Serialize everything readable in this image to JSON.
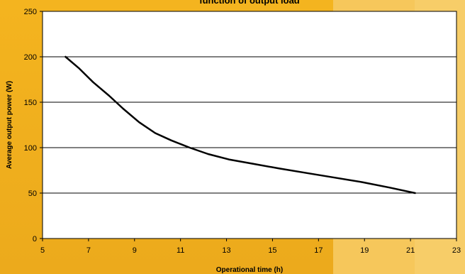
{
  "chart_data": {
    "type": "line",
    "title": "function of output load",
    "xlabel": "Operational time (h)",
    "ylabel": "Average output power (W)",
    "xlim": [
      5,
      23
    ],
    "ylim": [
      0,
      250
    ],
    "xticks": [
      "5",
      "7",
      "9",
      "11",
      "13",
      "15",
      "17",
      "19",
      "21",
      "23"
    ],
    "yticks": [
      "0",
      "50",
      "100",
      "150",
      "200",
      "250"
    ],
    "grid": "horizontal",
    "legend": "none",
    "series": [
      {
        "color": "#000000",
        "x": [
          6.0,
          6.6,
          7.2,
          7.9,
          8.5,
          9.2,
          9.9,
          10.6,
          11.4,
          12.2,
          13.1,
          14.2,
          15.3,
          16.5,
          17.7,
          18.9,
          20.1,
          21.2
        ],
        "y": [
          200,
          187,
          172,
          157,
          143,
          128,
          116,
          108,
          100,
          93,
          87,
          82,
          77,
          72,
          67,
          62,
          56,
          50
        ]
      }
    ]
  }
}
